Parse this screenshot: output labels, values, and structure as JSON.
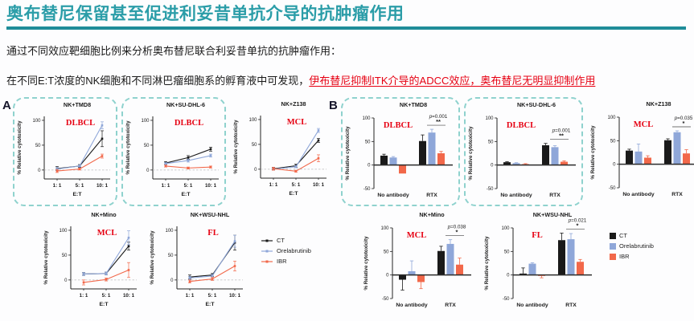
{
  "header": {
    "title": "奥布替尼保留甚至促进利妥昔单抗介导的抗肿瘤作用"
  },
  "intro": {
    "line1": "通过不同效应靶细胞比例来分析奥布替尼联合利妥昔单抗的抗肿瘤作用：",
    "line2_black": "在不同E:T浓度的NK细胞和不同淋巴瘤细胞系的孵育液中可发现，",
    "line2_red": "伊布替尼抑制ITK介导的ADCC效应，奥布替尼无明显抑制作用"
  },
  "panels": {
    "a_label": "A",
    "b_label": "B"
  },
  "colors": {
    "accent_teal": "#2b9da8",
    "rule_teal": "#1f8c99",
    "red_text": "#e60012",
    "dashed_box": "#8fd2ce",
    "axis": "#222222",
    "zero_dash": "#bcbcbc"
  },
  "legend": {
    "entries": [
      {
        "name": "CT",
        "color": "#1a1a1a"
      },
      {
        "name": "Orelabrutinib",
        "color": "#8fa7d9"
      },
      {
        "name": "IBR",
        "color": "#f2684a"
      }
    ]
  },
  "chart_data": [
    {
      "type": "line",
      "panel": "A",
      "title": "NK+TMD8",
      "disease": "DLBCL",
      "boxed": true,
      "x_ticks": [
        "1: 1",
        "5: 1",
        "10: 1"
      ],
      "xlabel": "E:T",
      "ylabel": "% Relative cytotoxicity",
      "ylim": [
        -18,
        108
      ],
      "yticks": [
        0,
        50,
        100
      ],
      "series": [
        {
          "name": "CT",
          "values": [
            3,
            8,
            63
          ],
          "errors": [
            4,
            3,
            16
          ]
        },
        {
          "name": "Orelabrutinib",
          "values": [
            2,
            8,
            90
          ],
          "errors": [
            3,
            2,
            7
          ]
        },
        {
          "name": "IBR",
          "values": [
            -2,
            2,
            28
          ],
          "errors": [
            3,
            2,
            4
          ]
        }
      ]
    },
    {
      "type": "line",
      "panel": "A",
      "title": "NK+SU-DHL-6",
      "disease": "DLBCL",
      "boxed": true,
      "x_ticks": [
        "1: 1",
        "5: 1",
        "10: 1"
      ],
      "xlabel": "E:T",
      "ylabel": "% Relative cytotoxicity",
      "ylim": [
        -18,
        108
      ],
      "yticks": [
        0,
        50,
        100
      ],
      "series": [
        {
          "name": "CT",
          "values": [
            14,
            25,
            42
          ],
          "errors": [
            3,
            4,
            4
          ]
        },
        {
          "name": "Orelabrutinib",
          "values": [
            13,
            19,
            29
          ],
          "errors": [
            2,
            3,
            3
          ]
        },
        {
          "name": "IBR",
          "values": [
            8,
            4,
            6
          ],
          "errors": [
            2,
            2,
            2
          ]
        }
      ]
    },
    {
      "type": "line",
      "panel": "A",
      "title": "NK+Z138",
      "disease": "MCL",
      "boxed": false,
      "x_ticks": [
        "1: 1",
        "5: 1",
        "10: 1"
      ],
      "xlabel": "E:T",
      "ylabel": "% Relative cytotoxicity",
      "ylim": [
        -18,
        108
      ],
      "yticks": [
        0,
        50,
        100
      ],
      "series": [
        {
          "name": "CT",
          "values": [
            1,
            7,
            58
          ],
          "errors": [
            2,
            3,
            4
          ]
        },
        {
          "name": "Orelabrutinib",
          "values": [
            0,
            5,
            78
          ],
          "errors": [
            2,
            2,
            4
          ]
        },
        {
          "name": "IBR",
          "values": [
            1,
            -4,
            22
          ],
          "errors": [
            3,
            2,
            7
          ]
        }
      ]
    },
    {
      "type": "line",
      "panel": "A",
      "title": "NK+Mino",
      "disease": "MCL",
      "boxed": false,
      "x_ticks": [
        "1: 1",
        "5: 1",
        "10: 1"
      ],
      "xlabel": "E:T",
      "ylabel": "% Relative cytotoxicity",
      "ylim": [
        -18,
        108
      ],
      "yticks": [
        0,
        50,
        100
      ],
      "series": [
        {
          "name": "CT",
          "values": [
            12,
            13,
            68
          ],
          "errors": [
            3,
            3,
            8
          ]
        },
        {
          "name": "Orelabrutinib",
          "values": [
            12,
            13,
            85
          ],
          "errors": [
            3,
            3,
            14
          ]
        },
        {
          "name": "IBR",
          "values": [
            -5,
            1,
            20
          ],
          "errors": [
            5,
            3,
            15
          ]
        }
      ]
    },
    {
      "type": "line",
      "panel": "A",
      "title": "NK+WSU-NHL",
      "disease": "FL",
      "boxed": false,
      "x_ticks": [
        "1: 1",
        "5: 1",
        "10: 1"
      ],
      "xlabel": "E:T",
      "ylabel": "% Relative cytotoxicity",
      "ylim": [
        -18,
        108
      ],
      "yticks": [
        0,
        50,
        100
      ],
      "series": [
        {
          "name": "CT",
          "values": [
            6,
            10,
            75
          ],
          "errors": [
            4,
            3,
            15
          ]
        },
        {
          "name": "Orelabrutinib",
          "values": [
            4,
            8,
            78
          ],
          "errors": [
            3,
            3,
            12
          ]
        },
        {
          "name": "IBR",
          "values": [
            -3,
            2,
            28
          ],
          "errors": [
            3,
            3,
            10
          ]
        }
      ]
    },
    {
      "type": "bar",
      "panel": "B",
      "title": "NK+TMD8",
      "disease": "DLBCL",
      "boxed": true,
      "p_value": "p=0.001",
      "stars": "**",
      "categories": [
        "No antibody",
        "RTX"
      ],
      "ylabel": "% Relative cytotoxicity",
      "ylim": [
        -50,
        100
      ],
      "yticks": [
        -50,
        0,
        50,
        100
      ],
      "series": [
        {
          "name": "CT",
          "values": [
            20,
            51
          ],
          "errors": [
            3,
            13
          ]
        },
        {
          "name": "Orelabrutinib",
          "values": [
            16,
            69
          ],
          "errors": [
            2,
            7
          ]
        },
        {
          "name": "IBR",
          "values": [
            -18,
            25
          ],
          "errors": [
            0,
            4
          ]
        }
      ]
    },
    {
      "type": "bar",
      "panel": "B",
      "title": "NK+SU-DHL-6",
      "disease": "DLBCL",
      "boxed": true,
      "p_value": "p=0.001",
      "stars": "**",
      "categories": [
        "No antibody",
        "RTX"
      ],
      "ylabel": "% Relative cytotoxicity",
      "ylim": [
        -50,
        100
      ],
      "yticks": [
        -50,
        0,
        50,
        100
      ],
      "series": [
        {
          "name": "CT",
          "values": [
            6,
            42
          ],
          "errors": [
            1,
            4
          ]
        },
        {
          "name": "Orelabrutinib",
          "values": [
            4,
            38
          ],
          "errors": [
            1,
            3
          ]
        },
        {
          "name": "IBR",
          "values": [
            2,
            7
          ],
          "errors": [
            1,
            2
          ]
        }
      ]
    },
    {
      "type": "bar",
      "panel": "B",
      "title": "NK+Z138",
      "disease": "MCL",
      "boxed": false,
      "p_value": "p=0.035",
      "stars": "*",
      "categories": [
        "No antibody",
        "RTX"
      ],
      "ylabel": "% Relative cytotoxicity",
      "ylim": [
        -50,
        100
      ],
      "yticks": [
        -50,
        0,
        50,
        100
      ],
      "series": [
        {
          "name": "CT",
          "values": [
            29,
            51
          ],
          "errors": [
            3,
            3
          ]
        },
        {
          "name": "Orelabrutinib",
          "values": [
            27,
            68
          ],
          "errors": [
            16,
            3
          ]
        },
        {
          "name": "IBR",
          "values": [
            14,
            23
          ],
          "errors": [
            4,
            8
          ]
        }
      ]
    },
    {
      "type": "bar",
      "panel": "B",
      "title": "NK+Mino",
      "disease": "MCL",
      "boxed": false,
      "p_value": "p=0.038",
      "stars": "*",
      "categories": [
        "No antibody",
        "RTX"
      ],
      "ylabel": "% Relative cytotoxicity",
      "ylim": [
        -50,
        100
      ],
      "yticks": [
        -50,
        0,
        50,
        100
      ],
      "series": [
        {
          "name": "CT",
          "values": [
            -10,
            51
          ],
          "errors": [
            22,
            10
          ]
        },
        {
          "name": "Orelabrutinib",
          "values": [
            8,
            66
          ],
          "errors": [
            22,
            9
          ]
        },
        {
          "name": "IBR",
          "values": [
            -15,
            22
          ],
          "errors": [
            14,
            14
          ]
        }
      ]
    },
    {
      "type": "bar",
      "panel": "B",
      "title": "NK+WSU-NHL",
      "disease": "FL",
      "boxed": false,
      "p_value": "p=0.021",
      "stars": "*",
      "categories": [
        "No antibody",
        "RTX"
      ],
      "ylabel": "% Relative cytotoxicity",
      "ylim": [
        -50,
        100
      ],
      "yticks": [
        -50,
        0,
        50,
        100
      ],
      "series": [
        {
          "name": "CT",
          "values": [
            3,
            74
          ],
          "errors": [
            12,
            15
          ]
        },
        {
          "name": "Orelabrutinib",
          "values": [
            24,
            76
          ],
          "errors": [
            2,
            12
          ]
        },
        {
          "name": "IBR",
          "values": [
            -2,
            28
          ],
          "errors": [
            4,
            5
          ]
        }
      ]
    }
  ]
}
